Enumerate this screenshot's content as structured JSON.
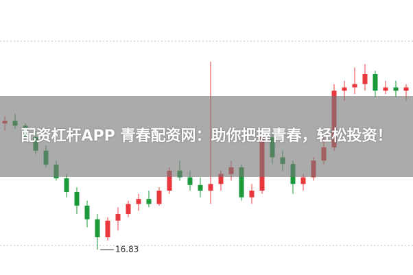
{
  "chart_data": {
    "type": "candlestick",
    "title": "配资杠杆APP 青春配资网：助你把握青春，轻松投资！",
    "ylim": [
      16.5,
      23.5
    ],
    "up_color": "#e8383d",
    "down_color": "#1a9a3a",
    "open": [
      20.62,
      20.7,
      20.55,
      20.21,
      19.8,
      19.38,
      18.97,
      18.56,
      18.15,
      17.74,
      17.2,
      17.7,
      17.9,
      18.2,
      18.35,
      18.2,
      18.6,
      19.2,
      19.0,
      18.77,
      18.6,
      18.8,
      19.1,
      19.3,
      18.4,
      18.6,
      20.2,
      19.6,
      19.4,
      18.8,
      19.0,
      19.5,
      19.9,
      21.6,
      21.7,
      21.8,
      22.1,
      21.6,
      21.7,
      21.6
    ],
    "high": [
      20.83,
      20.9,
      20.62,
      20.4,
      19.95,
      19.5,
      19.1,
      18.7,
      18.3,
      17.9,
      17.8,
      18.1,
      18.3,
      18.5,
      18.6,
      18.7,
      19.3,
      19.5,
      19.2,
      19.0,
      22.47,
      19.2,
      19.5,
      19.4,
      18.8,
      20.4,
      20.3,
      19.8,
      19.5,
      19.1,
      19.6,
      20.2,
      21.8,
      21.9,
      22.3,
      22.4,
      22.2,
      21.9,
      21.9,
      21.8
    ],
    "low": [
      20.4,
      20.45,
      20.1,
      19.7,
      19.3,
      18.9,
      18.4,
      17.9,
      17.5,
      16.83,
      17.1,
      17.4,
      17.8,
      18.0,
      18.1,
      18.15,
      18.5,
      18.9,
      18.6,
      18.4,
      18.2,
      18.6,
      18.9,
      18.3,
      18.2,
      18.5,
      19.4,
      19.2,
      18.5,
      18.6,
      18.9,
      19.4,
      19.8,
      21.3,
      21.5,
      21.6,
      21.4,
      21.5,
      21.4,
      21.3
    ],
    "close": [
      20.7,
      20.55,
      20.21,
      19.8,
      19.38,
      18.97,
      18.56,
      18.15,
      17.74,
      17.2,
      17.7,
      17.9,
      18.2,
      18.35,
      18.2,
      18.6,
      19.2,
      19.0,
      18.77,
      18.6,
      18.8,
      19.1,
      19.3,
      18.4,
      18.6,
      20.2,
      19.6,
      19.4,
      18.8,
      19.0,
      19.5,
      19.9,
      21.6,
      21.7,
      21.8,
      22.1,
      21.6,
      21.7,
      21.6,
      21.7
    ],
    "annotations": [
      {
        "text": "16.83",
        "value": 16.83
      }
    ]
  }
}
